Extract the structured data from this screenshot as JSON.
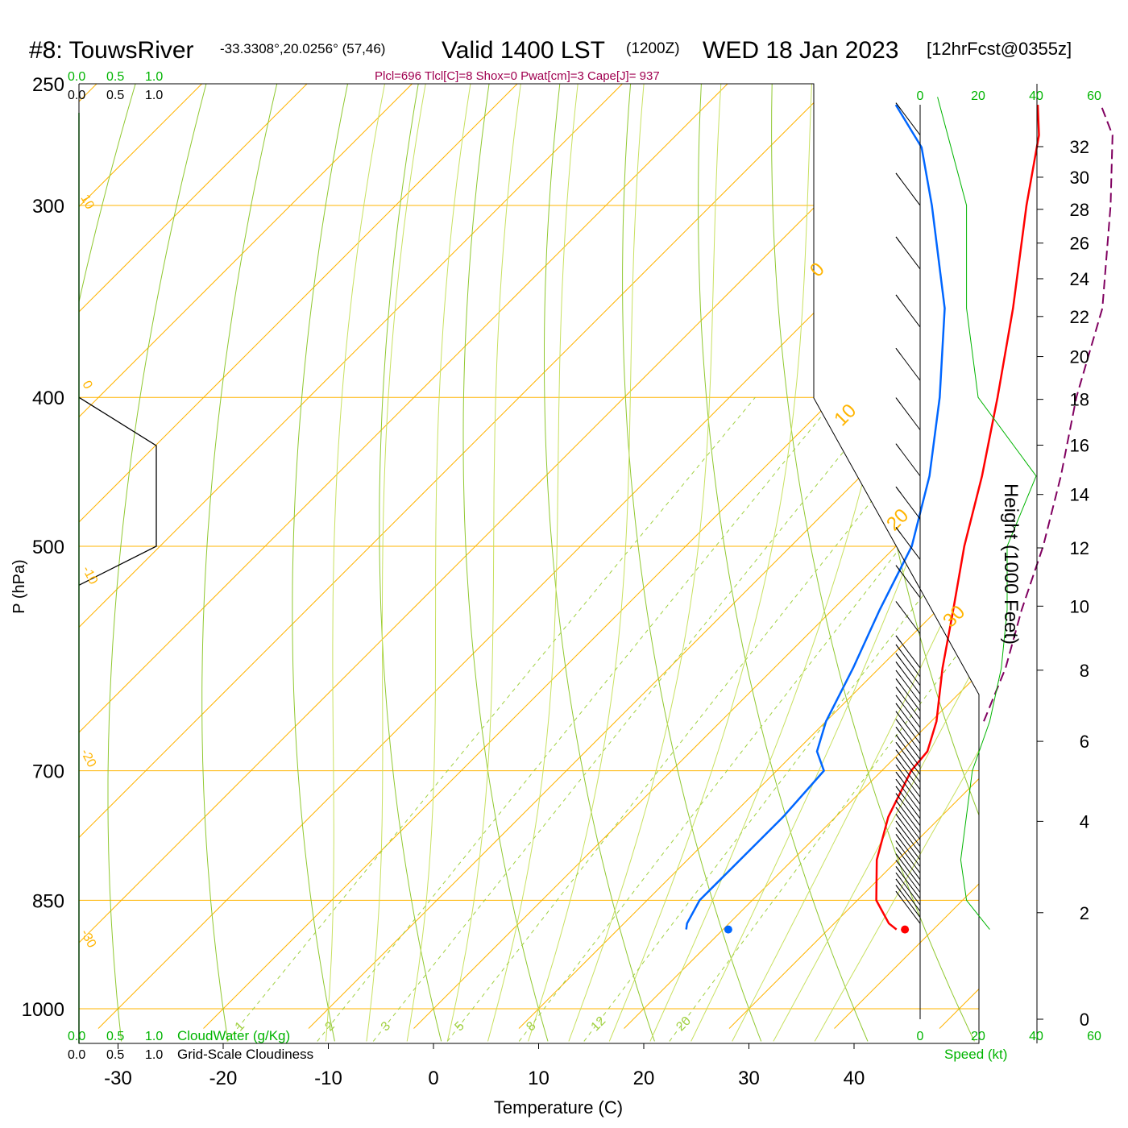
{
  "header": {
    "station": "#8: TouwsRiver",
    "coords": "-33.3308°,20.0256° (57,46)",
    "valid": "Valid 1400 LST",
    "zulu": "(1200Z)",
    "date": "WED 18 Jan 2023",
    "forecast": "[12hrFcst@0355z]",
    "indices": "Plcl=696 Tlcl[C]=8 Shox=0 Pwat[cm]=3 Cape[J]= 937"
  },
  "colors": {
    "temperature": "#ff0000",
    "dewpoint": "#0066ff",
    "parcel": "#800060",
    "isotherm": "#ffb400",
    "dry_adiabat": "#90c830",
    "moist_adiabat": "#c8e060",
    "mixing_ratio": "#a0d040",
    "green_label": "#00b400",
    "indices_text": "#a00050"
  },
  "chart_data": {
    "type": "line",
    "title": "Valid 1400 LST (1200Z) WED 18 Jan 2023",
    "xlabel": "Temperature (C)",
    "ylabel": "P (hPa)",
    "right_ylabel": "Height (1000 Feet)",
    "xlim": [
      -34,
      46
    ],
    "ylim": [
      1030,
      250
    ],
    "y_scale": "log",
    "skew": true,
    "pressure_ticks": [
      250,
      300,
      400,
      500,
      700,
      850,
      1000
    ],
    "temp_ticks": [
      -30,
      -20,
      -10,
      0,
      10,
      20,
      30,
      40
    ],
    "height_ticks": [
      0,
      2,
      4,
      6,
      8,
      10,
      12,
      14,
      16,
      18,
      20,
      22,
      24,
      26,
      28,
      30,
      32
    ],
    "mixing_ratio_labels": [
      "1",
      "2",
      "3",
      "5",
      "8",
      "12",
      "20"
    ],
    "isotherm_labels": [
      "10",
      "0",
      "-10",
      "-20",
      "-30",
      "0",
      "10",
      "20",
      "30"
    ],
    "cloud_axis_labels": [
      "0.0",
      "0.5",
      "1.0"
    ],
    "cloud_water_label": "CloudWater (g/Kg)",
    "cloudiness_label": "Grid-Scale Cloudiness",
    "speed_label": "Speed (kt)",
    "speed_ticks": [
      "0",
      "20",
      "40",
      "60"
    ],
    "series": [
      {
        "name": "Temperature",
        "points": [
          [
            888,
            36.5
          ],
          [
            880,
            35.2
          ],
          [
            850,
            31.8
          ],
          [
            800,
            28.0
          ],
          [
            750,
            25.0
          ],
          [
            700,
            22.8
          ],
          [
            680,
            22.5
          ],
          [
            650,
            20.5
          ],
          [
            600,
            16.0
          ],
          [
            550,
            11.5
          ],
          [
            500,
            6.5
          ],
          [
            450,
            1.5
          ],
          [
            400,
            -4.5
          ],
          [
            350,
            -11.5
          ],
          [
            300,
            -20.0
          ],
          [
            270,
            -25.5
          ],
          [
            258,
            -28.5
          ]
        ]
      },
      {
        "name": "Dewpoint",
        "points": [
          [
            888,
            16.5
          ],
          [
            880,
            16.0
          ],
          [
            850,
            15.0
          ],
          [
            800,
            15.0
          ],
          [
            750,
            15.0
          ],
          [
            700,
            14.5
          ],
          [
            680,
            12.0
          ],
          [
            650,
            10.0
          ],
          [
            600,
            7.5
          ],
          [
            550,
            4.5
          ],
          [
            500,
            1.5
          ],
          [
            450,
            -3.5
          ],
          [
            400,
            -10.0
          ],
          [
            350,
            -18.0
          ],
          [
            300,
            -29.0
          ],
          [
            275,
            -35.5
          ],
          [
            258,
            -42.0
          ]
        ]
      },
      {
        "name": "Parcel",
        "points": [
          [
            650,
            25.0
          ],
          [
            600,
            22.0
          ],
          [
            550,
            18.0
          ],
          [
            500,
            14.0
          ],
          [
            450,
            9.0
          ],
          [
            400,
            3.0
          ],
          [
            350,
            -3.0
          ],
          [
            300,
            -12.0
          ],
          [
            270,
            -18.5
          ],
          [
            258,
            -22.5
          ]
        ]
      }
    ],
    "surface_points": {
      "temperature": [
        888,
        37.3
      ],
      "dewpoint": [
        888,
        20.5
      ]
    },
    "height_profile": [
      [
        888,
        17
      ],
      [
        850,
        21
      ],
      [
        800,
        22
      ],
      [
        700,
        35
      ],
      [
        650,
        39
      ],
      [
        600,
        39
      ],
      [
        550,
        38
      ],
      [
        500,
        36
      ],
      [
        450,
        33
      ],
      [
        400,
        28
      ],
      [
        350,
        22
      ],
      [
        300,
        17
      ],
      [
        270,
        13
      ],
      [
        258,
        10
      ]
    ],
    "cloud_profile": [
      [
        400,
        0.0
      ],
      [
        430,
        1.0
      ],
      [
        450,
        1.0
      ],
      [
        500,
        1.0
      ],
      [
        530,
        0.0
      ]
    ],
    "wind_speed_profile": [
      [
        888,
        1.2
      ],
      [
        850,
        0.8
      ],
      [
        800,
        0.7
      ],
      [
        700,
        0.9
      ],
      [
        650,
        1.2
      ],
      [
        600,
        1.4
      ],
      [
        550,
        1.5
      ],
      [
        500,
        1.5
      ],
      [
        450,
        2.0
      ],
      [
        400,
        1.0
      ],
      [
        350,
        0.8
      ],
      [
        300,
        0.8
      ],
      [
        255,
        0.3
      ]
    ]
  }
}
